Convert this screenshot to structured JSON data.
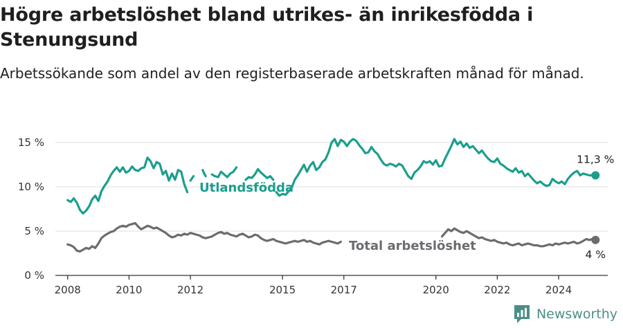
{
  "title": "Högre arbetslöshet bland utrikes- än inrikesfödda i Stenungsund",
  "subtitle": "Arbetssökande som andel av den registerbaserade arbetskraften månad för månad.",
  "brand": {
    "name": "Newsworthy",
    "icon": "newsworthy-logo-icon"
  },
  "colors": {
    "utlandsfodda": "#1b9e8e",
    "total": "#6b6b70",
    "grid": "#dcdcdc",
    "axis": "#333333"
  },
  "chart_data": {
    "type": "line",
    "xlim": [
      2007.6,
      2025.6
    ],
    "ylim": [
      0,
      15
    ],
    "y_ticks": [
      {
        "value": 0,
        "label": "0 %"
      },
      {
        "value": 5,
        "label": "5 %"
      },
      {
        "value": 10,
        "label": "10 %"
      },
      {
        "value": 15,
        "label": "15 %"
      }
    ],
    "x_ticks": [
      {
        "value": 2008,
        "label": "2008"
      },
      {
        "value": 2010,
        "label": "2010"
      },
      {
        "value": 2012,
        "label": "2012"
      },
      {
        "value": 2015,
        "label": "2015"
      },
      {
        "value": 2017,
        "label": "2017"
      },
      {
        "value": 2020,
        "label": "2020"
      },
      {
        "value": 2022,
        "label": "2022"
      },
      {
        "value": 2024,
        "label": "2024"
      }
    ],
    "grid": true,
    "series": [
      {
        "name": "Utlandsfödda",
        "end_label": "11,3 %",
        "segments": [
          {
            "x": [
              2008.0,
              2008.1,
              2008.2,
              2008.3,
              2008.4,
              2008.5,
              2008.6,
              2008.7,
              2008.8,
              2008.9,
              2009.0,
              2009.1,
              2009.2,
              2009.3,
              2009.4,
              2009.5,
              2009.6,
              2009.7,
              2009.8,
              2009.9,
              2010.0,
              2010.1,
              2010.2,
              2010.3,
              2010.4,
              2010.5,
              2010.6,
              2010.7,
              2010.8,
              2010.9,
              2011.0,
              2011.1,
              2011.2,
              2011.3,
              2011.4,
              2011.5,
              2011.6,
              2011.7,
              2011.8,
              2011.9
            ],
            "y": [
              8.5,
              8.3,
              8.7,
              8.2,
              7.4,
              7.0,
              7.3,
              7.8,
              8.6,
              9.0,
              8.4,
              9.5,
              10.1,
              10.6,
              11.3,
              11.8,
              12.2,
              11.7,
              12.2,
              11.6,
              11.8,
              12.3,
              11.9,
              11.8,
              12.1,
              12.2,
              13.3,
              12.9,
              12.1,
              12.8,
              12.6,
              11.4,
              11.8,
              10.7,
              11.5,
              10.8,
              11.9,
              11.7,
              10.3,
              9.4
            ]
          },
          {
            "x": [
              2012.0,
              2012.1
            ],
            "y": [
              10.7,
              11.2
            ]
          },
          {
            "x": [
              2012.4,
              2012.45,
              2012.5
            ],
            "y": [
              11.9,
              11.5,
              11.2
            ]
          },
          {
            "x": [
              2012.7,
              2012.8,
              2012.9,
              2013.0,
              2013.1,
              2013.2,
              2013.3,
              2013.4,
              2013.5
            ],
            "y": [
              11.4,
              11.2,
              11.1,
              11.7,
              11.4,
              11.1,
              11.5,
              11.7,
              12.2
            ]
          },
          {
            "x": [
              2013.8,
              2013.9,
              2014.0,
              2014.1,
              2014.2,
              2014.3,
              2014.4,
              2014.5,
              2014.6,
              2014.7
            ],
            "y": [
              10.8,
              11.1,
              11.0,
              11.4,
              12.0,
              11.6,
              11.3,
              11.0,
              11.2,
              10.8
            ]
          },
          {
            "x": [
              2014.8,
              2014.9,
              2015.0,
              2015.1,
              2015.2,
              2015.3,
              2015.4,
              2015.5,
              2015.6,
              2015.7,
              2015.8,
              2015.9,
              2016.0,
              2016.1,
              2016.2,
              2016.3,
              2016.4,
              2016.5,
              2016.6,
              2016.7,
              2016.8,
              2016.9,
              2017.0,
              2017.1,
              2017.2,
              2017.3,
              2017.4,
              2017.5,
              2017.6,
              2017.7,
              2017.8,
              2017.9,
              2018.0,
              2018.1,
              2018.2,
              2018.3,
              2018.4,
              2018.5,
              2018.6,
              2018.7,
              2018.8,
              2018.9,
              2019.0,
              2019.1,
              2019.2,
              2019.3,
              2019.4,
              2019.5,
              2019.6,
              2019.7,
              2019.8,
              2019.9,
              2020.0,
              2020.1,
              2020.2,
              2020.3,
              2020.4,
              2020.5,
              2020.6,
              2020.7,
              2020.8,
              2020.9,
              2021.0,
              2021.1,
              2021.2,
              2021.3,
              2021.4,
              2021.5,
              2021.6,
              2021.7,
              2021.8,
              2021.9,
              2022.0,
              2022.1,
              2022.2,
              2022.3,
              2022.4,
              2022.5,
              2022.6,
              2022.7,
              2022.8,
              2022.9,
              2023.0,
              2023.1,
              2023.2,
              2023.3,
              2023.4,
              2023.5,
              2023.6,
              2023.7,
              2023.8,
              2023.9,
              2024.0,
              2024.1,
              2024.2,
              2024.3,
              2024.4,
              2024.5,
              2024.6,
              2024.7,
              2024.8,
              2024.9,
              2025.0,
              2025.1,
              2025.2
            ],
            "y": [
              9.4,
              9.0,
              9.2,
              9.1,
              9.5,
              9.9,
              10.8,
              11.3,
              11.9,
              12.5,
              11.7,
              12.4,
              12.8,
              11.9,
              12.2,
              12.8,
              13.1,
              13.9,
              15.0,
              15.4,
              14.6,
              15.3,
              15.1,
              14.6,
              15.1,
              15.4,
              15.2,
              14.7,
              14.3,
              13.8,
              13.9,
              14.5,
              14.0,
              13.7,
              13.1,
              12.6,
              12.4,
              12.6,
              12.5,
              12.3,
              12.6,
              12.4,
              11.8,
              11.2,
              10.9,
              11.6,
              11.9,
              12.3,
              12.9,
              12.7,
              12.9,
              12.5,
              13.0,
              12.3,
              12.4,
              13.2,
              13.9,
              14.6,
              15.4,
              14.8,
              15.1,
              14.5,
              14.9,
              14.4,
              14.6,
              14.2,
              13.8,
              14.1,
              13.6,
              13.2,
              12.9,
              12.8,
              13.2,
              12.6,
              12.4,
              12.1,
              11.9,
              11.7,
              12.1,
              11.6,
              11.8,
              11.2,
              11.5,
              11.1,
              10.7,
              10.4,
              10.6,
              10.3,
              10.1,
              10.2,
              10.9,
              10.6,
              10.4,
              10.6,
              10.3,
              10.9,
              11.3,
              11.6,
              11.8,
              11.3,
              11.5,
              11.4,
              11.3,
              11.3,
              11.3
            ]
          }
        ]
      },
      {
        "name": "Total arbetslöshet",
        "end_label": "4 %",
        "segments": [
          {
            "x": [
              2008.0,
              2008.1,
              2008.2,
              2008.3,
              2008.4,
              2008.5,
              2008.6,
              2008.7,
              2008.8,
              2008.9,
              2009.0,
              2009.1,
              2009.2,
              2009.3,
              2009.4,
              2009.5,
              2009.6,
              2009.7,
              2009.8,
              2009.9,
              2010.0,
              2010.1,
              2010.2,
              2010.3,
              2010.4,
              2010.5,
              2010.6,
              2010.7,
              2010.8,
              2010.9,
              2011.0,
              2011.1,
              2011.2,
              2011.3,
              2011.4,
              2011.5,
              2011.6,
              2011.7,
              2011.8,
              2011.9,
              2012.0,
              2012.1,
              2012.2,
              2012.3,
              2012.4,
              2012.5,
              2012.6,
              2012.7,
              2012.8,
              2012.9,
              2013.0,
              2013.1,
              2013.2,
              2013.3,
              2013.4,
              2013.5,
              2013.6,
              2013.7,
              2013.8,
              2013.9,
              2014.0,
              2014.1,
              2014.2,
              2014.3,
              2014.4,
              2014.5,
              2014.6,
              2014.7,
              2014.8,
              2014.9,
              2015.0,
              2015.1,
              2015.2,
              2015.3,
              2015.4,
              2015.5,
              2015.6,
              2015.7,
              2015.8,
              2015.9,
              2016.0,
              2016.1,
              2016.2,
              2016.3,
              2016.4,
              2016.5,
              2016.6,
              2016.7,
              2016.8,
              2016.9
            ],
            "y": [
              3.5,
              3.4,
              3.2,
              2.8,
              2.7,
              2.9,
              3.1,
              3.0,
              3.3,
              3.1,
              3.6,
              4.2,
              4.5,
              4.7,
              4.9,
              5.0,
              5.3,
              5.5,
              5.6,
              5.5,
              5.7,
              5.8,
              5.9,
              5.5,
              5.2,
              5.4,
              5.6,
              5.5,
              5.3,
              5.4,
              5.2,
              5.0,
              4.8,
              4.5,
              4.3,
              4.4,
              4.6,
              4.5,
              4.7,
              4.6,
              4.8,
              4.7,
              4.6,
              4.5,
              4.3,
              4.2,
              4.3,
              4.4,
              4.6,
              4.8,
              4.9,
              4.7,
              4.8,
              4.6,
              4.5,
              4.4,
              4.6,
              4.7,
              4.5,
              4.3,
              4.4,
              4.6,
              4.5,
              4.2,
              4.0,
              3.9,
              4.0,
              4.1,
              3.9,
              3.8,
              3.7,
              3.6,
              3.7,
              3.8,
              3.9,
              3.8,
              3.9,
              4.0,
              3.8,
              3.9,
              3.7,
              3.6,
              3.5,
              3.7,
              3.8,
              3.9,
              3.8,
              3.7,
              3.6,
              3.8
            ]
          },
          {
            "x": [
              2020.2,
              2020.3,
              2020.4,
              2020.5,
              2020.6,
              2020.7,
              2020.8,
              2020.9,
              2021.0,
              2021.1,
              2021.2,
              2021.3,
              2021.4,
              2021.5,
              2021.6,
              2021.7,
              2021.8,
              2021.9,
              2022.0,
              2022.1,
              2022.2,
              2022.3,
              2022.4,
              2022.5,
              2022.6,
              2022.7,
              2022.8,
              2022.9,
              2023.0,
              2023.1,
              2023.2,
              2023.3,
              2023.4,
              2023.5,
              2023.6,
              2023.7,
              2023.8,
              2023.9,
              2024.0,
              2024.1,
              2024.2,
              2024.3,
              2024.4,
              2024.5,
              2024.6,
              2024.7,
              2024.8,
              2024.9,
              2025.0,
              2025.1,
              2025.2
            ],
            "y": [
              4.4,
              4.8,
              5.2,
              5.0,
              5.3,
              5.1,
              4.9,
              4.8,
              5.0,
              4.8,
              4.6,
              4.4,
              4.2,
              4.3,
              4.1,
              4.0,
              3.9,
              4.0,
              3.8,
              3.7,
              3.6,
              3.7,
              3.5,
              3.4,
              3.5,
              3.6,
              3.4,
              3.5,
              3.6,
              3.5,
              3.4,
              3.4,
              3.3,
              3.3,
              3.4,
              3.5,
              3.4,
              3.6,
              3.5,
              3.6,
              3.7,
              3.6,
              3.7,
              3.8,
              3.6,
              3.7,
              3.9,
              4.1,
              4.0,
              4.1,
              4.0
            ]
          }
        ]
      }
    ]
  }
}
